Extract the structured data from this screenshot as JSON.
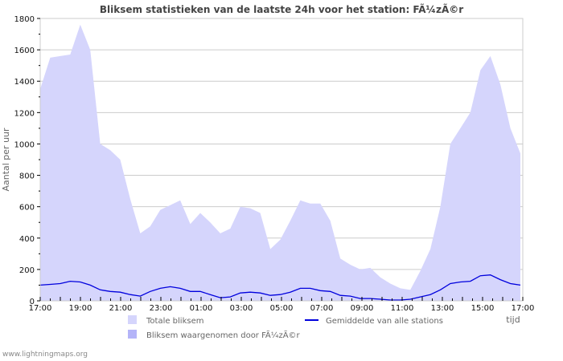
{
  "title": "Bliksem statistieken van de laatste 24h voor het station: FÃ¼zÃ©r",
  "footer": "www.lightningmaps.org",
  "colors": {
    "total_fill": "#d5d5fc",
    "station_fill": "#b4b4f8",
    "avg_line": "#0000dd",
    "grid": "#cccccc",
    "frame": "#cccccc"
  },
  "chart_data": {
    "type": "area",
    "title": "Bliksem statistieken van de laatste 24h voor het station: FÃ¼zÃ©r",
    "xlabel": "tijd",
    "ylabel": "Aantal per uur",
    "ylim": [
      0,
      1800
    ],
    "yticks": [
      0,
      200,
      400,
      600,
      800,
      1000,
      1200,
      1400,
      1600,
      1800
    ],
    "xtick_labels": [
      "17:00",
      "19:00",
      "21:00",
      "23:00",
      "01:00",
      "03:00",
      "05:00",
      "07:00",
      "09:00",
      "11:00",
      "13:00",
      "15:00",
      "17:00"
    ],
    "grid": true,
    "legend_position": "bottom",
    "x": [
      "17:00",
      "17:30",
      "18:00",
      "18:30",
      "19:00",
      "19:30",
      "20:00",
      "20:30",
      "21:00",
      "21:30",
      "22:00",
      "22:30",
      "23:00",
      "23:30",
      "00:00",
      "00:30",
      "01:00",
      "01:30",
      "02:00",
      "02:30",
      "03:00",
      "03:30",
      "04:00",
      "04:30",
      "05:00",
      "05:30",
      "06:00",
      "06:30",
      "07:00",
      "07:30",
      "08:00",
      "08:30",
      "09:00",
      "09:30",
      "10:00",
      "10:30",
      "11:00",
      "11:30",
      "12:00",
      "12:30",
      "13:00",
      "13:30",
      "14:00",
      "14:30",
      "15:00",
      "15:30",
      "16:00",
      "16:30",
      "17:00"
    ],
    "series": [
      {
        "name": "Totale bliksem",
        "style": "area",
        "values": [
          1350,
          1550,
          1560,
          1570,
          1760,
          1600,
          1000,
          960,
          900,
          650,
          430,
          475,
          580,
          610,
          640,
          490,
          560,
          500,
          430,
          460,
          600,
          590,
          560,
          330,
          390,
          510,
          640,
          620,
          620,
          510,
          270,
          230,
          200,
          210,
          150,
          110,
          80,
          70,
          190,
          330,
          600,
          1000,
          1100,
          1200,
          1470,
          1560,
          1380,
          1100,
          940
        ]
      },
      {
        "name": "Bliksem waargenomen door FÃ¼zÃ©r",
        "style": "area",
        "values": [
          0,
          0,
          0,
          0,
          0,
          0,
          0,
          0,
          0,
          0,
          0,
          0,
          0,
          0,
          0,
          0,
          0,
          0,
          0,
          0,
          0,
          0,
          0,
          0,
          0,
          0,
          0,
          0,
          0,
          0,
          0,
          0,
          0,
          0,
          0,
          0,
          0,
          0,
          0,
          0,
          0,
          0,
          0,
          0,
          0,
          0,
          0,
          0,
          0
        ]
      },
      {
        "name": "Gemiddelde van alle stations",
        "style": "line",
        "values": [
          100,
          105,
          110,
          125,
          120,
          100,
          70,
          60,
          55,
          40,
          30,
          60,
          80,
          90,
          80,
          60,
          60,
          40,
          20,
          25,
          50,
          55,
          50,
          35,
          40,
          55,
          80,
          80,
          65,
          60,
          35,
          30,
          15,
          15,
          10,
          5,
          5,
          10,
          25,
          40,
          70,
          110,
          120,
          125,
          160,
          165,
          135,
          110,
          100
        ]
      }
    ]
  },
  "legend": [
    {
      "label": "Totale bliksem",
      "kind": "swatch"
    },
    {
      "label": "Gemiddelde van alle stations",
      "kind": "line"
    },
    {
      "label": "Bliksem waargenomen door FÃ¼zÃ©r",
      "kind": "swatch"
    }
  ]
}
